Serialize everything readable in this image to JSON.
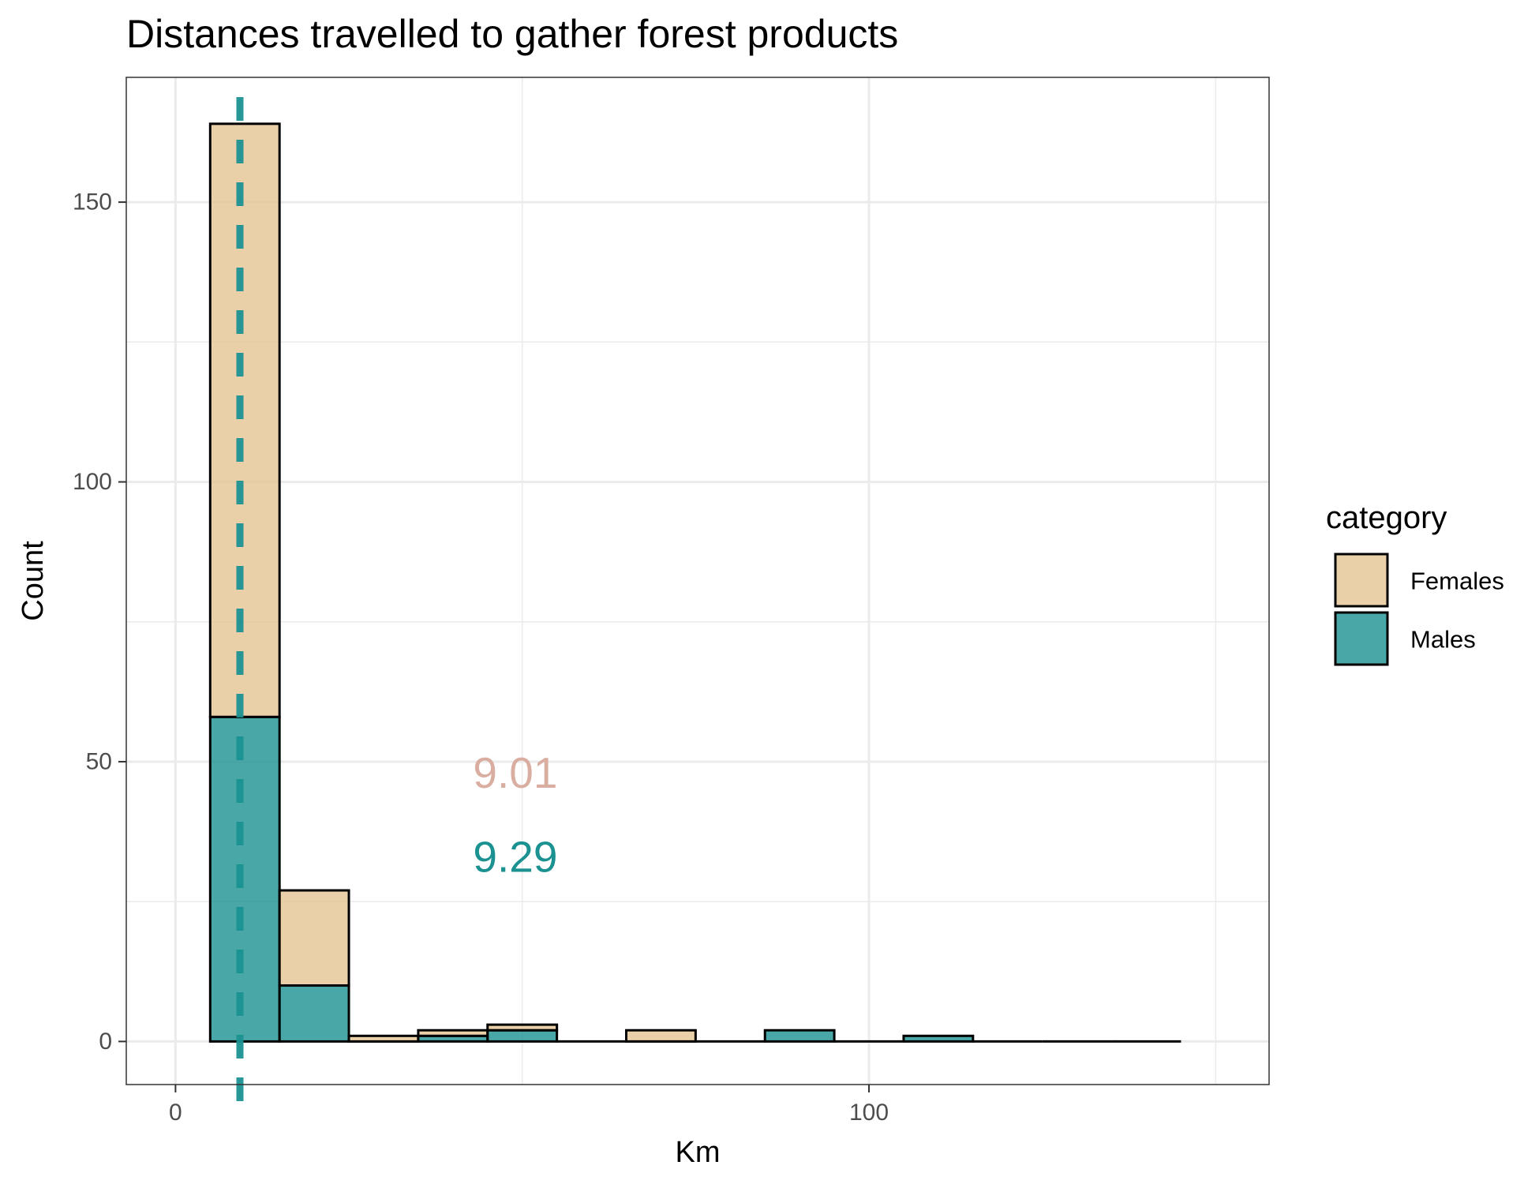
{
  "chart_data": {
    "type": "bar",
    "subtype": "stacked histogram",
    "title": "Distances travelled to gather forest products",
    "xlabel": "Km",
    "ylabel": "Count",
    "xlim": [
      -7.1,
      157.7
    ],
    "ylim": [
      -7.7,
      172.3
    ],
    "x_ticks": [
      0,
      100
    ],
    "x_minor_ticks": [
      50,
      150
    ],
    "y_ticks": [
      0,
      50,
      100,
      150
    ],
    "y_minor_ticks": [
      25,
      75,
      125
    ],
    "grid": true,
    "bin_edges": [
      5,
      15,
      25,
      35,
      45,
      55,
      65,
      75,
      85,
      95,
      105,
      115,
      125,
      135,
      145
    ],
    "series": [
      {
        "name": "Females",
        "color": "#E5C494",
        "values": [
          106,
          17,
          1,
          1,
          1,
          0,
          2,
          0,
          0,
          0,
          0,
          0,
          0,
          0
        ]
      },
      {
        "name": "Males",
        "color": "#1B9191",
        "values": [
          58,
          10,
          0,
          1,
          2,
          0,
          0,
          0,
          2,
          0,
          1,
          0,
          0,
          0
        ]
      }
    ],
    "vline": {
      "x": 9.29,
      "color": "#1B9191",
      "style": "dashed"
    },
    "annotations": [
      {
        "text": "9.01",
        "color": "#D9ADA0",
        "x": 49,
        "y": 48
      },
      {
        "text": "9.29",
        "color": "#1B9191",
        "x": 49,
        "y": 33
      }
    ],
    "legend": {
      "title": "category",
      "position": "right",
      "entries": [
        "Females",
        "Males"
      ]
    }
  }
}
